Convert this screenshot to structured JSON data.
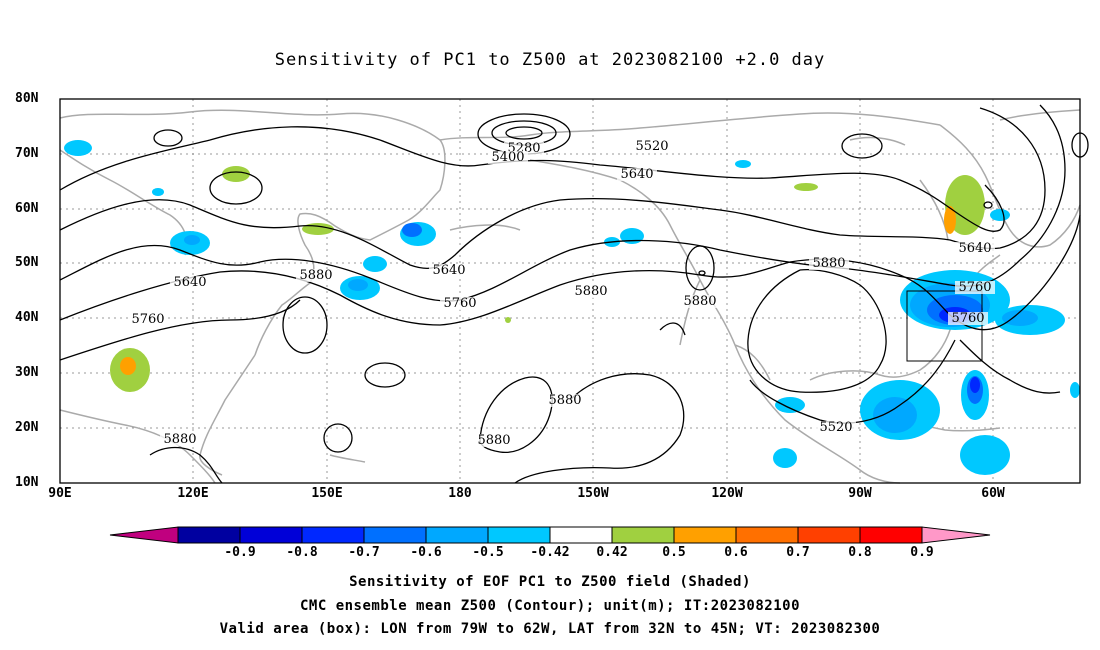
{
  "title": "Sensitivity of PC1 to Z500 at 2023082100 +2.0 day",
  "map": {
    "lon_range": [
      "90E",
      "30W"
    ],
    "lat_range": [
      "10N",
      "80N"
    ],
    "lat_labels": [
      "80N",
      "70N",
      "60N",
      "50N",
      "40N",
      "30N",
      "20N",
      "10N"
    ],
    "lon_labels": [
      "90E",
      "120E",
      "150E",
      "180",
      "150W",
      "120W",
      "90W",
      "60W"
    ],
    "grid": "dotted",
    "coastline_color": "#aaaaaa",
    "contour_color": "#000000",
    "contour_labels": [
      "5280",
      "5400",
      "5520",
      "5640",
      "5640",
      "5640",
      "5760",
      "5760",
      "5760",
      "5880",
      "5880",
      "5880",
      "5880",
      "5880",
      "5880",
      "5880",
      "5520",
      "5640",
      "5760"
    ],
    "valid_box": {
      "lon_west": "79W",
      "lon_east": "62W",
      "lat_south": "32N",
      "lat_north": "45N"
    }
  },
  "colorbar": {
    "labels": [
      "-0.9",
      "-0.8",
      "-0.7",
      "-0.6",
      "-0.5",
      "-0.42",
      "0.42",
      "0.5",
      "0.6",
      "0.7",
      "0.8",
      "0.9"
    ],
    "colors": [
      "#0000a0",
      "#0000d8",
      "#0028ff",
      "#0070ff",
      "#00a8ff",
      "#00c8ff",
      "#ffffff",
      "#a0d040",
      "#ffa000",
      "#ff7000",
      "#ff4000",
      "#ff0000"
    ],
    "left_arrow_color": "#c0007f",
    "right_arrow_color": "#ff98c8"
  },
  "captions": {
    "line1": "Sensitivity of EOF PC1 to Z500 field (Shaded)",
    "line2": "CMC ensemble mean Z500 (Contour); unit(m); IT:2023082100",
    "line3": "Valid area (box): LON from 79W to 62W, LAT from 32N to 45N; VT: 2023082300"
  }
}
